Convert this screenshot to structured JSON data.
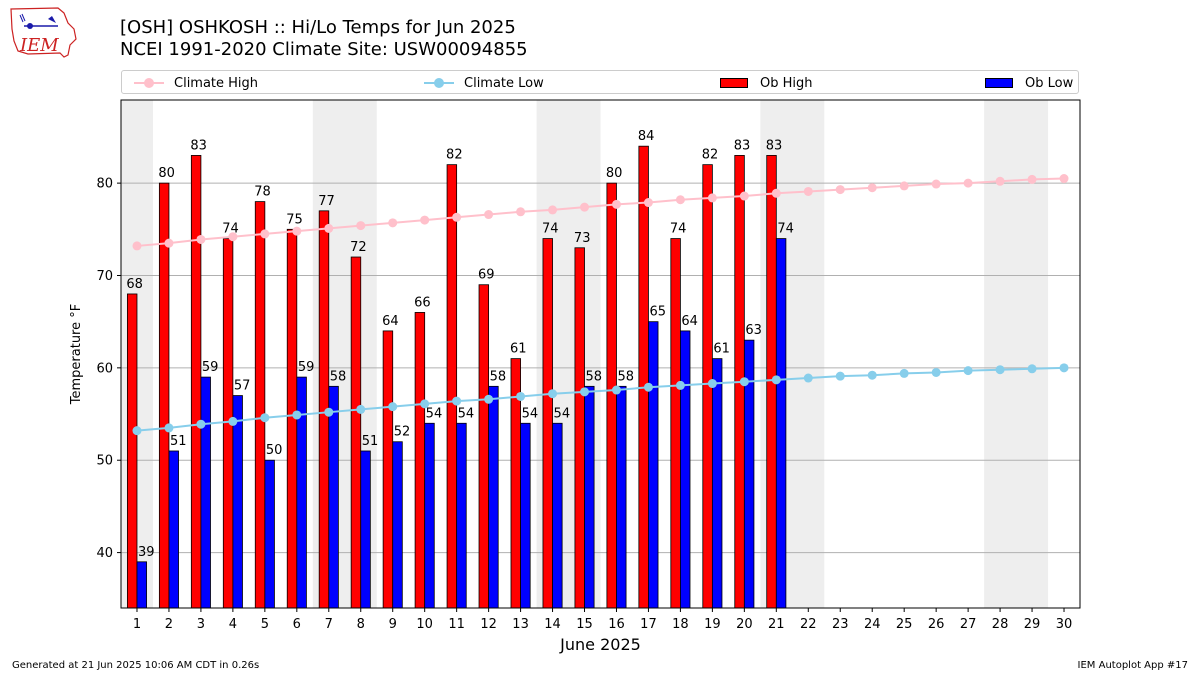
{
  "header": {
    "title_line1": "[OSH] OSHKOSH :: Hi/Lo Temps for Jun 2025",
    "title_line2": "NCEI 1991-2020 Climate Site: USW00094855"
  },
  "logo": {
    "text": "IEM",
    "color": "#cc2222"
  },
  "footer": {
    "left": "Generated at 21 Jun 2025 10:06 AM CDT in 0.26s",
    "right": "IEM Autoplot App #17"
  },
  "legend": [
    {
      "label": "Climate High",
      "kind": "line",
      "color": "#ffc0cb"
    },
    {
      "label": "Climate Low",
      "kind": "line",
      "color": "#87ceeb"
    },
    {
      "label": "Ob High",
      "kind": "bar",
      "color": "#ff0000"
    },
    {
      "label": "Ob Low",
      "kind": "bar",
      "color": "#0000ff"
    }
  ],
  "chart_data": {
    "type": "bar",
    "xlabel": "June 2025",
    "ylabel": "Temperature °F",
    "ylim": [
      34,
      89
    ],
    "xlim": [
      0.5,
      30.5
    ],
    "yticks": [
      40,
      50,
      60,
      70,
      80
    ],
    "days": [
      1,
      2,
      3,
      4,
      5,
      6,
      7,
      8,
      9,
      10,
      11,
      12,
      13,
      14,
      15,
      16,
      17,
      18,
      19,
      20,
      21,
      22,
      23,
      24,
      25,
      26,
      27,
      28,
      29,
      30
    ],
    "grid": "horizontal",
    "legend_position": "top",
    "weekend_shading": [
      [
        0.5,
        1.5
      ],
      [
        6.5,
        8.5
      ],
      [
        13.5,
        15.5
      ],
      [
        20.5,
        22.5
      ],
      [
        27.5,
        29.5
      ]
    ],
    "series": [
      {
        "name": "Ob High",
        "kind": "bar",
        "color": "#ff0000",
        "values": [
          68,
          80,
          83,
          74,
          78,
          75,
          77,
          72,
          64,
          66,
          82,
          69,
          61,
          74,
          73,
          80,
          84,
          74,
          82,
          83,
          83
        ]
      },
      {
        "name": "Ob Low",
        "kind": "bar",
        "color": "#0000ff",
        "values": [
          39,
          51,
          59,
          57,
          50,
          59,
          58,
          51,
          52,
          54,
          54,
          58,
          54,
          54,
          58,
          58,
          65,
          64,
          61,
          63,
          74
        ]
      },
      {
        "name": "Climate High",
        "kind": "line",
        "color": "#ffc0cb",
        "values": [
          73.2,
          73.5,
          73.9,
          74.2,
          74.5,
          74.8,
          75.1,
          75.4,
          75.7,
          76.0,
          76.3,
          76.6,
          76.9,
          77.1,
          77.4,
          77.7,
          77.9,
          78.2,
          78.4,
          78.6,
          78.9,
          79.1,
          79.3,
          79.5,
          79.7,
          79.9,
          80.0,
          80.2,
          80.4,
          80.5
        ]
      },
      {
        "name": "Climate Low",
        "kind": "line",
        "color": "#87ceeb",
        "values": [
          53.2,
          53.5,
          53.9,
          54.2,
          54.6,
          54.9,
          55.2,
          55.5,
          55.8,
          56.1,
          56.4,
          56.6,
          56.9,
          57.2,
          57.4,
          57.6,
          57.9,
          58.1,
          58.3,
          58.5,
          58.7,
          58.9,
          59.1,
          59.2,
          59.4,
          59.5,
          59.7,
          59.8,
          59.9,
          60.0
        ]
      }
    ]
  }
}
